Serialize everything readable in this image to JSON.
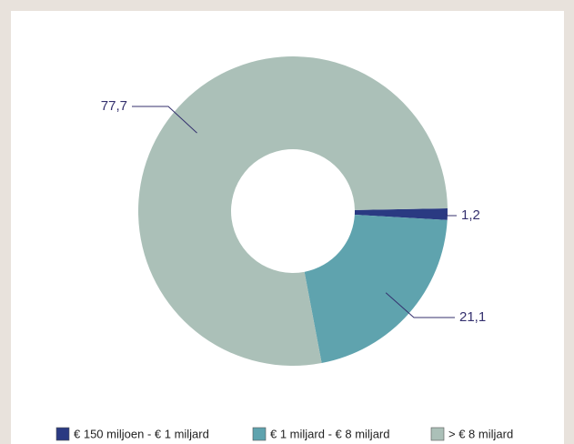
{
  "chart_data": {
    "type": "donut",
    "categories": [
      "€ 150 miljoen - € 1 miljard",
      "€ 1 miljard - € 8 miljard",
      "> € 8 miljard"
    ],
    "values": [
      1.2,
      21.1,
      77.7
    ],
    "value_labels": [
      "1,2",
      "21,1",
      "77,7"
    ],
    "colors": [
      "#2a3a82",
      "#5fa3ae",
      "#abc0b8"
    ],
    "legend": "bottom"
  }
}
